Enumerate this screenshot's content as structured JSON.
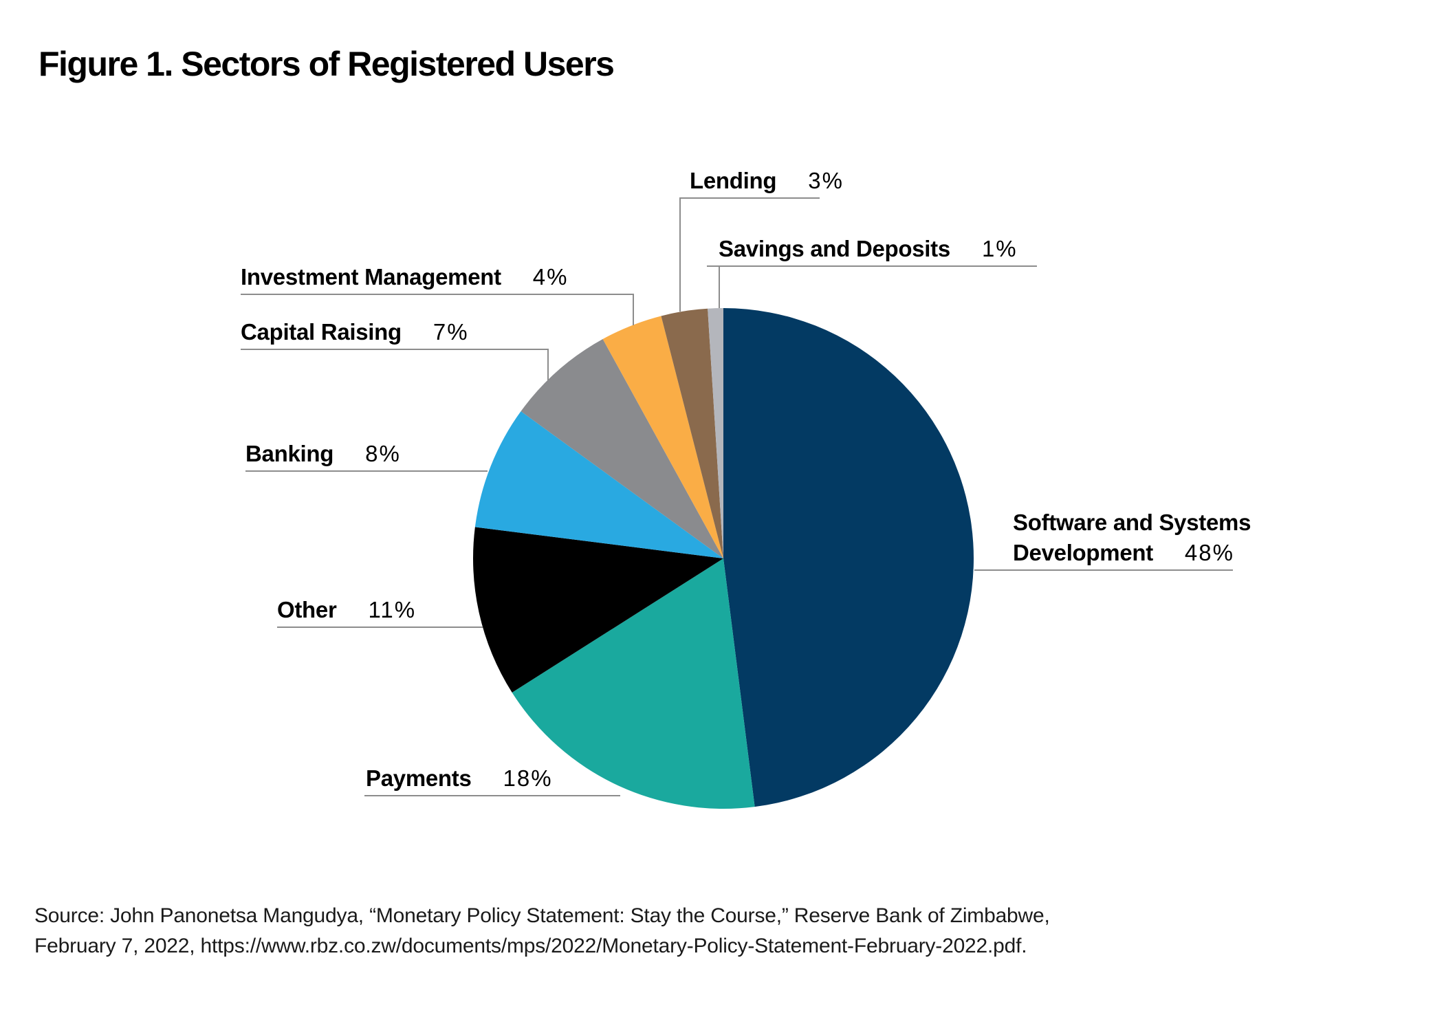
{
  "title": "Figure 1. Sectors of Registered Users",
  "source": {
    "line1": "Source: John Panonetsa Mangudya, “Monetary Policy Statement: Stay the Course,” Reserve Bank of Zimbabwe,",
    "line2": "February 7, 2022, https://www.rbz.co.zw/documents/mps/2022/Monetary-Policy-Statement-February-2022.pdf."
  },
  "chart_data": {
    "type": "pie",
    "title": "Figure 1. Sectors of Registered Users",
    "start_angle_deg": 0,
    "direction": "clockwise",
    "legend_position": "outside-callouts",
    "slices": [
      {
        "label": "Software and Systems Development",
        "label_lines": [
          "Software and Systems",
          "Development"
        ],
        "value": 48,
        "pct_label": "48%",
        "color": "#033A63"
      },
      {
        "label": "Payments",
        "value": 18,
        "pct_label": "18%",
        "color": "#1AA99E"
      },
      {
        "label": "Other",
        "value": 11,
        "pct_label": "11%",
        "color": "#000000"
      },
      {
        "label": "Banking",
        "value": 8,
        "pct_label": "8%",
        "color": "#29A9E1"
      },
      {
        "label": "Capital Raising",
        "value": 7,
        "pct_label": "7%",
        "color": "#8A8B8E"
      },
      {
        "label": "Investment Management",
        "value": 4,
        "pct_label": "4%",
        "color": "#FAAD46"
      },
      {
        "label": "Lending",
        "value": 3,
        "pct_label": "3%",
        "color": "#8A6A4D"
      },
      {
        "label": "Savings and Deposits",
        "value": 1,
        "pct_label": "1%",
        "color": "#B4B6BC"
      }
    ],
    "line_color": "#8C8C8C"
  }
}
